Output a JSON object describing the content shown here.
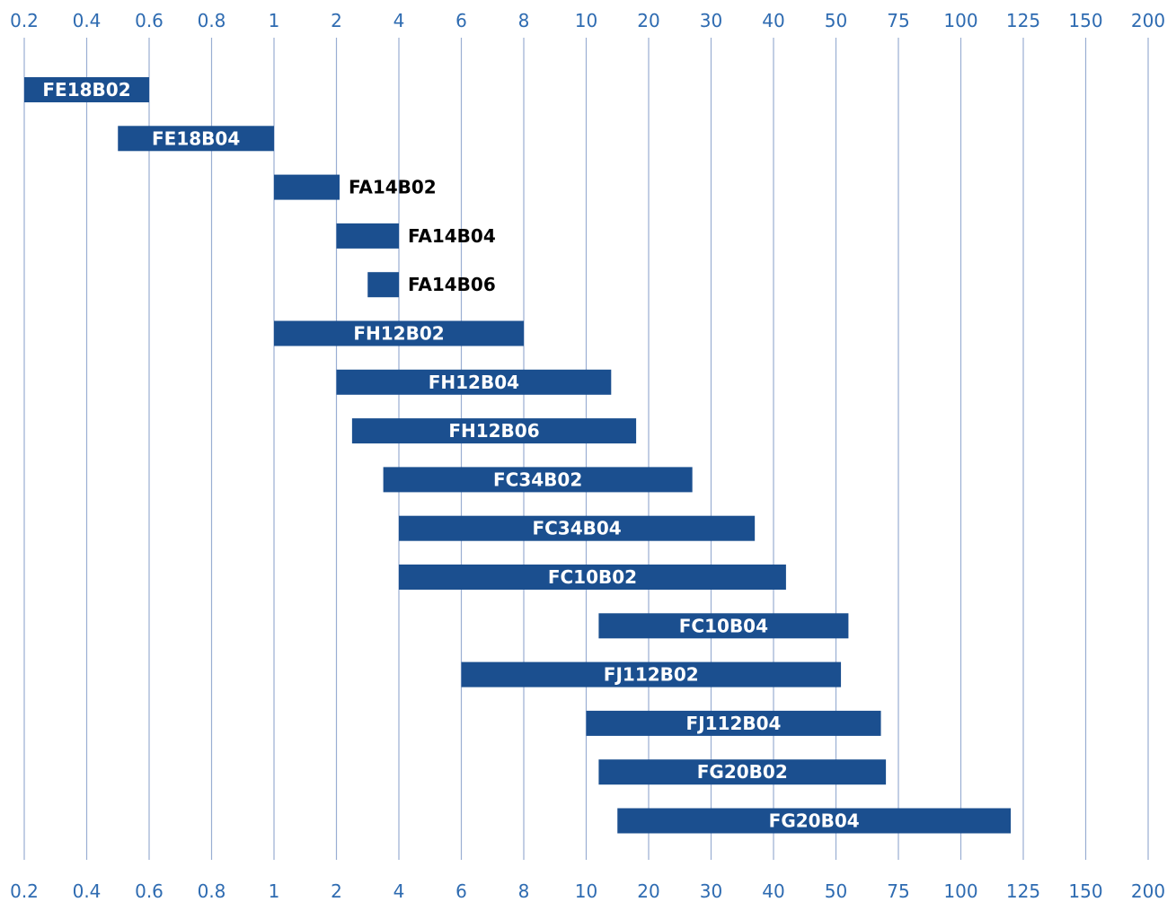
{
  "chart_data": {
    "type": "bar",
    "orientation": "horizontal-range",
    "title": "",
    "xlabel": "",
    "ylabel": "",
    "x_ticks": [
      "0.2",
      "0.4",
      "0.6",
      "0.8",
      "1",
      "2",
      "4",
      "6",
      "8",
      "10",
      "20",
      "30",
      "40",
      "50",
      "75",
      "100",
      "125",
      "150",
      "200"
    ],
    "x_scale": "piecewise",
    "grid": true,
    "axis_labels_position": "top-and-bottom",
    "colors": {
      "bar": "#1b4f8f",
      "grid": "#9aaed3",
      "tick_label": "#2e6bb1",
      "label_inside": "#ffffff",
      "label_outside": "#000000"
    },
    "series": [
      {
        "label": "FE18B02",
        "start": 0.2,
        "end": 0.6
      },
      {
        "label": "FE18B04",
        "start": 0.5,
        "end": 1
      },
      {
        "label": "FA14B02",
        "start": 1,
        "end": 2.1
      },
      {
        "label": "FA14B04",
        "start": 2,
        "end": 4
      },
      {
        "label": "FA14B06",
        "start": 3,
        "end": 4
      },
      {
        "label": "FH12B02",
        "start": 1,
        "end": 8
      },
      {
        "label": "FH12B04",
        "start": 2,
        "end": 14
      },
      {
        "label": "FH12B06",
        "start": 2.5,
        "end": 18
      },
      {
        "label": "FC34B02",
        "start": 3.5,
        "end": 27
      },
      {
        "label": "FC34B04",
        "start": 4,
        "end": 37
      },
      {
        "label": "FC10B02",
        "start": 4,
        "end": 42
      },
      {
        "label": "FC10B04",
        "start": 12,
        "end": 55
      },
      {
        "label": "FJ112B02",
        "start": 6,
        "end": 52
      },
      {
        "label": "FJ112B04",
        "start": 10,
        "end": 68
      },
      {
        "label": "FG20B02",
        "start": 12,
        "end": 70
      },
      {
        "label": "FG20B04",
        "start": 15,
        "end": 120
      }
    ]
  }
}
